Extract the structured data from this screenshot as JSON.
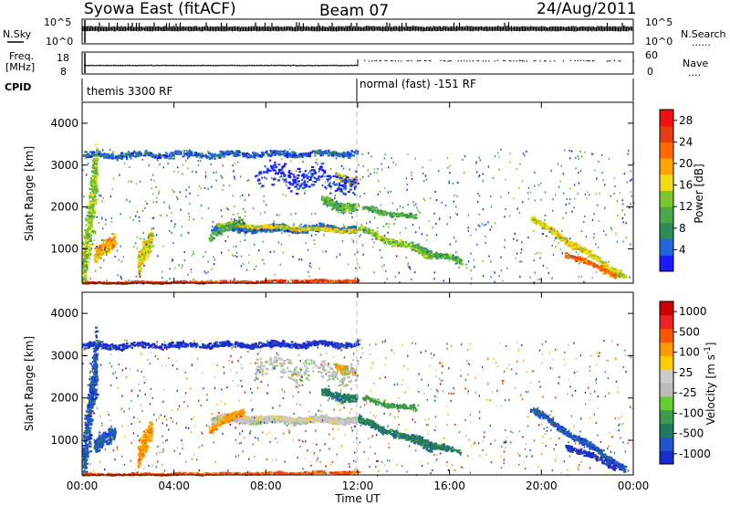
{
  "header": {
    "station": "Syowa East (fitACF)",
    "beam": "Beam 07",
    "date": "24/Aug/2011"
  },
  "panels": {
    "noise": {
      "left_label": "N.Sky",
      "right_label": "N.Search",
      "right_legend_line": "......",
      "left_ticks": [
        "10^5",
        "10^0"
      ],
      "right_ticks": [
        "10^5",
        "10^0"
      ]
    },
    "freq": {
      "left_label_line1": "Freq.",
      "left_label_line2": "[MHz]",
      "right_label": "Nave",
      "right_legend_line": "....",
      "left_ticks": [
        "18",
        "8"
      ],
      "right_ticks": [
        "60",
        "0"
      ]
    },
    "cpid": {
      "label": "CPID",
      "segments": [
        {
          "name": "themis 3300 RF",
          "start_hour": 0,
          "end_hour": 12
        },
        {
          "name": "normal (fast) -151 RF",
          "start_hour": 12,
          "end_hour": 24
        }
      ]
    }
  },
  "colors": {
    "power_scale": [
      "#1a1aff",
      "#2266dd",
      "#2e8b57",
      "#4aa84a",
      "#7cc82a",
      "#f0dc14",
      "#ffa500",
      "#ff6a00",
      "#e63a10",
      "#ee1111"
    ],
    "velocity_scale": [
      "#1a2ccc",
      "#2255cc",
      "#1f7a5a",
      "#3c9a48",
      "#66cc33",
      "#bbbbbb",
      "#cccccc",
      "#ffcc00",
      "#ff9900",
      "#ff5500",
      "#ee2222",
      "#cc0000"
    ]
  },
  "chart_data": [
    {
      "type": "heatmap",
      "ylabel": "Slant Range [km]",
      "ylim": [
        180,
        4500
      ],
      "xlim": [
        0,
        24
      ],
      "y_ticks": [
        1000,
        2000,
        3000,
        4000
      ],
      "y_tick_labels": [
        "1000",
        "2000",
        "3000",
        "4000"
      ],
      "colorbar": {
        "label": "Power [dB]",
        "range": [
          0,
          30
        ],
        "ticks": [
          4,
          8,
          12,
          16,
          20,
          24,
          28
        ],
        "tick_labels": [
          "4",
          "8",
          "12",
          "16",
          "20",
          "24",
          "28"
        ]
      }
    },
    {
      "type": "heatmap",
      "xlabel": "Time UT",
      "ylabel": "Slant Range [km]",
      "ylim": [
        180,
        4500
      ],
      "xlim": [
        0,
        24
      ],
      "x_ticks": [
        0,
        4,
        8,
        12,
        16,
        20,
        24
      ],
      "x_tick_labels": [
        "00:00",
        "04:00",
        "08:00",
        "12:00",
        "16:00",
        "20:00",
        "00:00"
      ],
      "y_ticks": [
        1000,
        2000,
        3000,
        4000
      ],
      "y_tick_labels": [
        "1000",
        "2000",
        "3000",
        "4000"
      ],
      "colorbar": {
        "label": "Velocity [m s^-1]",
        "ticks": [
          1000,
          500,
          100,
          25,
          -25,
          -100,
          -500,
          -1000
        ],
        "tick_labels": [
          "1000",
          "500",
          "100",
          "25",
          "-25",
          "-100",
          "-500",
          "-1000"
        ]
      }
    }
  ]
}
